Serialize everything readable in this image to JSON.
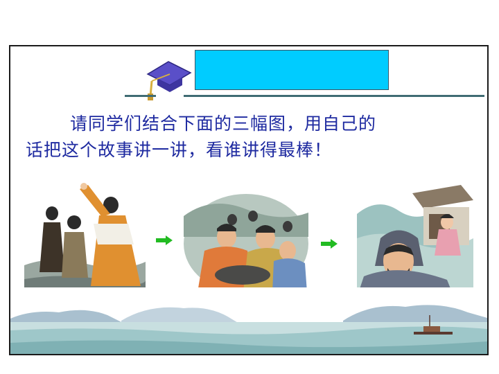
{
  "prompt": {
    "line1": "请同学们结合下面的三幅图，用自己的",
    "line2": "话把这个故事讲一讲，看谁讲得最棒！"
  },
  "icons": {
    "cap": "graduation-cap-icon",
    "arrow": "right-arrow-icon"
  },
  "colors": {
    "title_box": "#00ccff",
    "rule": "#3f6b73",
    "text": "#1e2aa0",
    "arrow": "#22bb22"
  }
}
